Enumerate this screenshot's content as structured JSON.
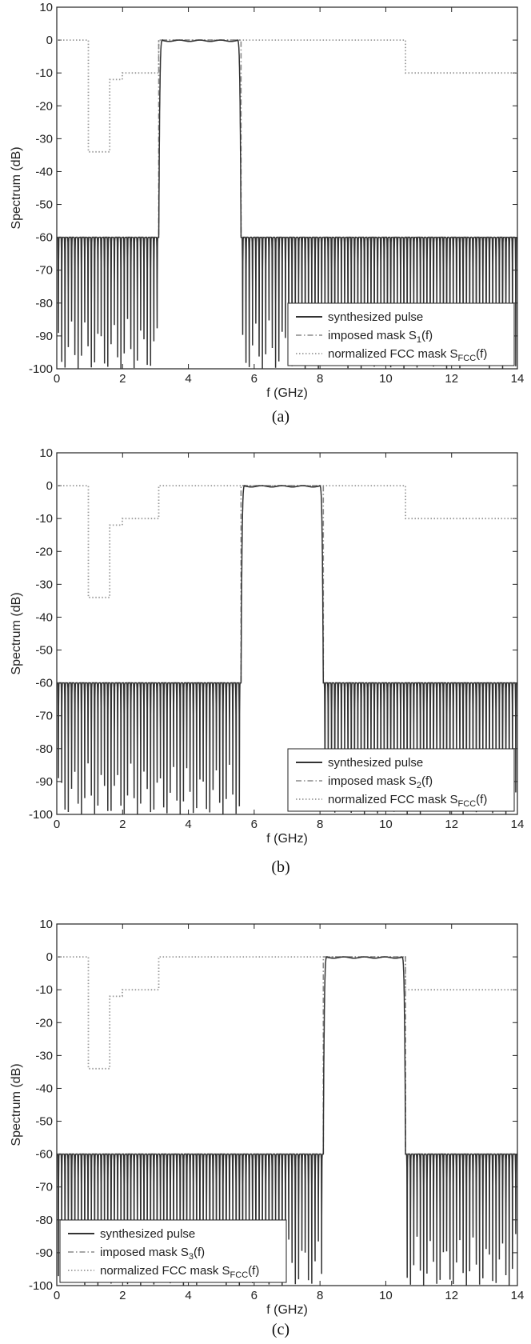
{
  "chart_data": [
    {
      "type": "line",
      "caption": "(a)",
      "xlabel": "f (GHz)",
      "ylabel": "Spectrum (dB)",
      "xlim": [
        0,
        14
      ],
      "ylim": [
        -100,
        10
      ],
      "xticks": [
        "0",
        "2",
        "4",
        "6",
        "8",
        "10",
        "12",
        "14"
      ],
      "yticks": [
        "10",
        "0",
        "-10",
        "-20",
        "-30",
        "-40",
        "-50",
        "-60",
        "-70",
        "-80",
        "-90",
        "-100"
      ],
      "grid": false,
      "legend": {
        "placement": "bottom-right",
        "entries": [
          {
            "label": "synthesized pulse",
            "sub": "",
            "after": "",
            "style": "solid"
          },
          {
            "label": "imposed mask S",
            "sub": "1",
            "after": "(f)",
            "style": "dashdot"
          },
          {
            "label": "normalized FCC mask S",
            "sub": "FCC",
            "after": "(f)",
            "style": "dotted"
          }
        ]
      },
      "series": [
        {
          "name": "synthesized pulse",
          "passband_ghz": [
            3.1,
            5.6
          ],
          "passband_level_db": 0,
          "ripple_db": 0.4,
          "sidelobe_level_db": -60,
          "sidelobe_nulls_db": -100
        },
        {
          "name": "imposed mask S1(f)",
          "x": [
            0,
            3.1,
            3.1,
            5.6,
            5.6,
            14
          ],
          "y": [
            -60,
            -60,
            0,
            0,
            -60,
            -60
          ]
        },
        {
          "name": "normalized FCC mask SFCC(f)",
          "x": [
            0,
            0.96,
            0.96,
            1.61,
            1.61,
            1.99,
            1.99,
            3.1,
            3.1,
            10.6,
            10.6,
            14
          ],
          "y": [
            0,
            0,
            -34,
            -34,
            -12,
            -12,
            -10,
            -10,
            0,
            0,
            -10,
            -10
          ]
        }
      ]
    },
    {
      "type": "line",
      "caption": "(b)",
      "xlabel": "f (GHz)",
      "ylabel": "Spectrum (dB)",
      "xlim": [
        0,
        14
      ],
      "ylim": [
        -100,
        10
      ],
      "xticks": [
        "0",
        "2",
        "4",
        "6",
        "8",
        "10",
        "12",
        "14"
      ],
      "yticks": [
        "10",
        "0",
        "-10",
        "-20",
        "-30",
        "-40",
        "-50",
        "-60",
        "-70",
        "-80",
        "-90",
        "-100"
      ],
      "grid": false,
      "legend": {
        "placement": "bottom-right",
        "entries": [
          {
            "label": "synthesized pulse",
            "sub": "",
            "after": "",
            "style": "solid"
          },
          {
            "label": "imposed mask S",
            "sub": "2",
            "after": "(f)",
            "style": "dashdot"
          },
          {
            "label": "normalized FCC mask S",
            "sub": "FCC",
            "after": "(f)",
            "style": "dotted"
          }
        ]
      },
      "series": [
        {
          "name": "synthesized pulse",
          "passband_ghz": [
            5.6,
            8.1
          ],
          "passband_level_db": 0,
          "ripple_db": 0.4,
          "sidelobe_level_db": -60,
          "sidelobe_nulls_db": -100
        },
        {
          "name": "imposed mask S2(f)",
          "x": [
            0,
            5.6,
            5.6,
            8.1,
            8.1,
            14
          ],
          "y": [
            -60,
            -60,
            0,
            0,
            -60,
            -60
          ]
        },
        {
          "name": "normalized FCC mask SFCC(f)",
          "x": [
            0,
            0.96,
            0.96,
            1.61,
            1.61,
            1.99,
            1.99,
            3.1,
            3.1,
            10.6,
            10.6,
            14
          ],
          "y": [
            0,
            0,
            -34,
            -34,
            -12,
            -12,
            -10,
            -10,
            0,
            0,
            -10,
            -10
          ]
        }
      ]
    },
    {
      "type": "line",
      "caption": "(c)",
      "xlabel": "f (GHz)",
      "ylabel": "Spectrum (dB)",
      "xlim": [
        0,
        14
      ],
      "ylim": [
        -100,
        10
      ],
      "xticks": [
        "0",
        "2",
        "4",
        "6",
        "8",
        "10",
        "12",
        "14"
      ],
      "yticks": [
        "10",
        "0",
        "-10",
        "-20",
        "-30",
        "-40",
        "-50",
        "-60",
        "-70",
        "-80",
        "-90",
        "-100"
      ],
      "grid": false,
      "legend": {
        "placement": "bottom-left",
        "entries": [
          {
            "label": "synthesized pulse",
            "sub": "",
            "after": "",
            "style": "solid"
          },
          {
            "label": "imposed mask S",
            "sub": "3",
            "after": "(f)",
            "style": "dashdot"
          },
          {
            "label": "normalized FCC mask S",
            "sub": "FCC",
            "after": "(f)",
            "style": "dotted"
          }
        ]
      },
      "series": [
        {
          "name": "synthesized pulse",
          "passband_ghz": [
            8.1,
            10.6
          ],
          "passband_level_db": 0,
          "ripple_db": 0.4,
          "sidelobe_level_db": -60,
          "sidelobe_nulls_db": -100
        },
        {
          "name": "imposed mask S3(f)",
          "x": [
            0,
            8.1,
            8.1,
            10.6,
            10.6,
            14
          ],
          "y": [
            -60,
            -60,
            0,
            0,
            -60,
            -60
          ]
        },
        {
          "name": "normalized FCC mask SFCC(f)",
          "x": [
            0,
            0.96,
            0.96,
            1.61,
            1.61,
            1.99,
            1.99,
            3.1,
            3.1,
            10.6,
            10.6,
            14
          ],
          "y": [
            0,
            0,
            -34,
            -34,
            -12,
            -12,
            -10,
            -10,
            0,
            0,
            -10,
            -10
          ]
        }
      ]
    }
  ],
  "colors": {
    "pulse": "#333333",
    "imposed_mask": "#8a8a8a",
    "fcc_mask": "#9a9a9a",
    "axes": "#222222"
  }
}
